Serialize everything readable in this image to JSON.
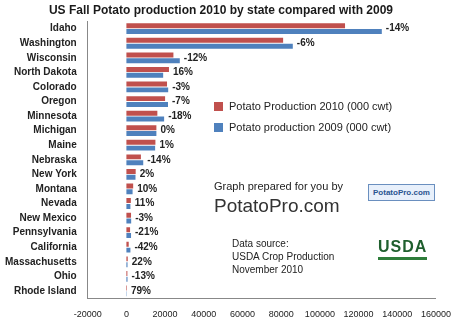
{
  "chart_data": {
    "type": "bar",
    "orientation": "horizontal",
    "title": "US Fall Potato production 2010 by state compared with 2009",
    "categories": [
      "Idaho",
      "Washington",
      "Wisconsin",
      "North Dakota",
      "Colorado",
      "Oregon",
      "Minnesota",
      "Michigan",
      "Maine",
      "Nebraska",
      "New York",
      "Montana",
      "Nevada",
      "New Mexico",
      "Pennsylvania",
      "California",
      "Massachusetts",
      "Ohio",
      "Rhode Island"
    ],
    "series": [
      {
        "name": "Potato Production 2010 (000 cwt)",
        "color": "#c0504d",
        "values": [
          113000,
          81000,
          24300,
          22000,
          21000,
          20000,
          16000,
          15500,
          15000,
          7500,
          4800,
          3500,
          2300,
          2400,
          1900,
          1200,
          700,
          500,
          300
        ]
      },
      {
        "name": "Potato production 2009 (000 cwt)",
        "color": "#4f81bd",
        "values": [
          132000,
          86000,
          27600,
          19000,
          21600,
          21500,
          19500,
          15500,
          14850,
          8700,
          4700,
          3200,
          2070,
          2470,
          2400,
          2070,
          575,
          575,
          168
        ]
      }
    ],
    "change_labels": [
      "-14%",
      "-6%",
      "-12%",
      "16%",
      "-3%",
      "-7%",
      "-18%",
      "0%",
      "1%",
      "-14%",
      "2%",
      "10%",
      "11%",
      "-3%",
      "-21%",
      "-42%",
      "22%",
      "-13%",
      "79%"
    ],
    "xlim": [
      -20000,
      160000
    ],
    "xticks": [
      -20000,
      0,
      20000,
      40000,
      60000,
      80000,
      100000,
      120000,
      140000,
      160000
    ],
    "grid": false,
    "legend": "right",
    "annotations": [
      "Graph prepared for you by",
      "PotatoPro.com",
      "Data source:",
      "USDA Crop Production",
      "November 2010"
    ],
    "logos": [
      "PotatoPro.com",
      "USDA"
    ]
  }
}
